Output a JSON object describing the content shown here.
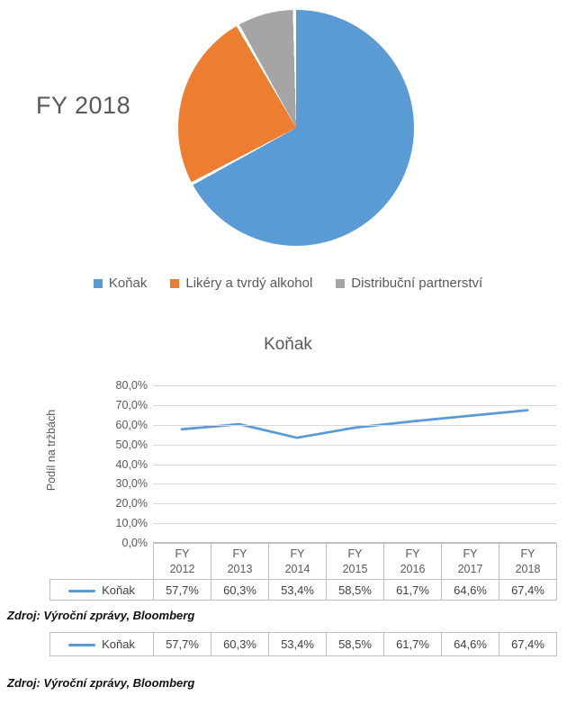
{
  "chart_data": [
    {
      "type": "pie",
      "title": "FY 2018",
      "labels": [
        "Koňak",
        "Likéry a tvrdý alkohol",
        "Distribuční partnerství"
      ],
      "values": [
        67.4,
        24.6,
        8.0
      ],
      "colors": [
        "#5B9BD5",
        "#ED7D31",
        "#A5A5A5"
      ],
      "legend_position": "bottom",
      "start_angle": "top",
      "direction": "clockwise"
    },
    {
      "type": "line",
      "title": "Koňak",
      "ylabel": "Podíl na tržbách",
      "xlabel": "",
      "categories": [
        "FY 2012",
        "FY 2013",
        "FY 2014",
        "FY 2015",
        "FY 2016",
        "FY 2017",
        "FY 2018"
      ],
      "series": [
        {
          "name": "Koňak",
          "color": "#5B9BD5",
          "values": [
            57.7,
            60.3,
            53.4,
            58.5,
            61.7,
            64.6,
            67.4
          ]
        }
      ],
      "value_labels": [
        "57,7%",
        "60,3%",
        "53,4%",
        "58,5%",
        "61,7%",
        "64,6%",
        "67,4%"
      ],
      "ylim": [
        0,
        80
      ],
      "ytick_labels": [
        "80,0%",
        "70,0%",
        "60,0%",
        "50,0%",
        "40,0%",
        "30,0%",
        "20,0%",
        "10,0%",
        "0,0%"
      ],
      "grid": true,
      "data_table_below_axis": true,
      "legend_position": "data-table-left"
    }
  ],
  "bottom_table": {
    "name": "Koňak",
    "values": [
      "57,7%",
      "60,3%",
      "53,4%",
      "58,5%",
      "61,7%",
      "64,6%",
      "67,4%"
    ]
  },
  "source_note": "Zdroj: Výroční zprávy, Bloomberg",
  "colors": {
    "series_blue": "#5B9BD5",
    "series_orange": "#ED7D31",
    "series_gray": "#A5A5A5",
    "text_gray": "#595959",
    "gridline": "#D9D9D9",
    "table_border": "#BFBFBF"
  }
}
